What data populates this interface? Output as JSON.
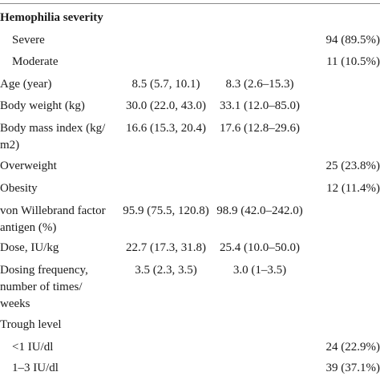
{
  "table": {
    "rows": [
      {
        "label": "Hemophilia severity",
        "col2": "",
        "col3": "",
        "col4": ""
      },
      {
        "label": "Severe",
        "col2": "",
        "col3": "",
        "col4": "94 (89.5%)"
      },
      {
        "label": "Moderate",
        "col2": "",
        "col3": "",
        "col4": "11 (10.5%)"
      },
      {
        "label": "Age (year)",
        "col2": "8.5 (5.7, 10.1)",
        "col3": "8.3 (2.6–15.3)",
        "col4": ""
      },
      {
        "label": "Body weight (kg)",
        "col2": "30.0 (22.0, 43.0)",
        "col3": "33.1 (12.0–85.0)",
        "col4": ""
      },
      {
        "label": "Body mass index (kg/ m2)",
        "col2": "16.6 (15.3, 20.4)",
        "col3": "17.6 (12.8–29.6)",
        "col4": ""
      },
      {
        "label": "Overweight",
        "col2": "",
        "col3": "",
        "col4": "25 (23.8%)"
      },
      {
        "label": "Obesity",
        "col2": "",
        "col3": "",
        "col4": "12 (11.4%)"
      },
      {
        "label": "von Willebrand factor antigen (%)",
        "col2": "95.9 (75.5, 120.8)",
        "col3": "98.9 (42.0–242.0)",
        "col4": ""
      },
      {
        "label": "Dose, IU/kg",
        "col2": "22.7 (17.3, 31.8)",
        "col3": "25.4 (10.0–50.0)",
        "col4": ""
      },
      {
        "label": "Dosing frequency, number of times/ weeks",
        "col2": "3.5 (2.3, 3.5)",
        "col3": "3.0 (1–3.5)",
        "col4": ""
      },
      {
        "label": "Trough level",
        "col2": "",
        "col3": "",
        "col4": ""
      },
      {
        "label": "<1 IU/dl",
        "col2": "",
        "col3": "",
        "col4": "24 (22.9%)"
      },
      {
        "label": "1–3 IU/dl",
        "col2": "",
        "col3": "",
        "col4": "39 (37.1%)"
      }
    ]
  }
}
